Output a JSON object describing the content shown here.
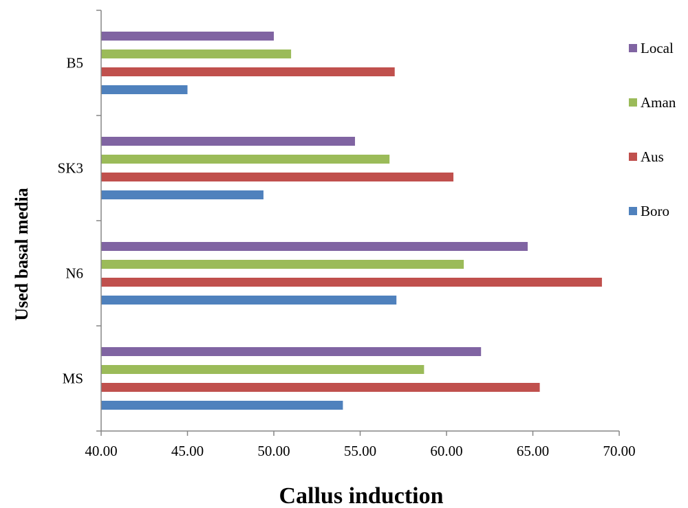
{
  "chart_data": {
    "type": "bar",
    "orientation": "horizontal",
    "title": "",
    "xlabel": "Callus induction",
    "ylabel": "Used basal media",
    "categories": [
      "MS",
      "N6",
      "SK3",
      "B5"
    ],
    "xlim": [
      40,
      70
    ],
    "x_ticks": [
      "40.00",
      "45.00",
      "50.00",
      "55.00",
      "60.00",
      "65.00",
      "70.00"
    ],
    "legend_position": "right",
    "series": [
      {
        "name": "Boro",
        "color": "#4f81bd",
        "values": [
          54.0,
          57.1,
          49.4,
          45.0
        ]
      },
      {
        "name": "Aus",
        "color": "#c0504d",
        "values": [
          65.4,
          69.0,
          60.4,
          57.0
        ]
      },
      {
        "name": "Aman",
        "color": "#9bbb59",
        "values": [
          58.7,
          61.0,
          56.7,
          51.0
        ]
      },
      {
        "name": "Local",
        "color": "#8064a2",
        "values": [
          62.0,
          64.7,
          54.7,
          50.0
        ]
      }
    ],
    "grid": false
  }
}
